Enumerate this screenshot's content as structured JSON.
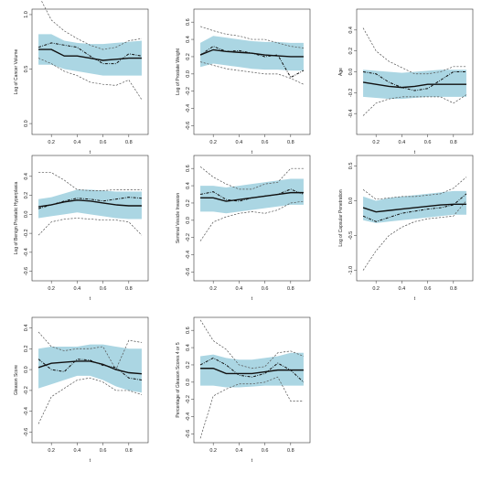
{
  "colors": {
    "band": "#abd6e3",
    "fit": "#111111",
    "bounds": "#555555",
    "estimate": "#111111"
  },
  "chart_data": [
    {
      "type": "line",
      "ylabel": "Log of Cancer Volume",
      "xlabel": "t",
      "xlim": [
        0.05,
        0.95
      ],
      "ylim": [
        -0.1,
        1.05
      ],
      "xticks": [
        0.2,
        0.4,
        0.6,
        0.8
      ],
      "yticks": [
        0.0,
        0.5,
        1.0
      ],
      "ytick_labels": [
        "0.0",
        "0.5",
        "1.0"
      ],
      "x": [
        0.1,
        0.2,
        0.3,
        0.4,
        0.5,
        0.6,
        0.7,
        0.8,
        0.9
      ],
      "fit": [
        0.68,
        0.68,
        0.62,
        0.62,
        0.6,
        0.58,
        0.59,
        0.6,
        0.6
      ],
      "band_lower": [
        0.54,
        0.54,
        0.5,
        0.48,
        0.46,
        0.44,
        0.44,
        0.44,
        0.44
      ],
      "band_upper": [
        0.82,
        0.82,
        0.76,
        0.74,
        0.73,
        0.73,
        0.74,
        0.75,
        0.76
      ],
      "estimate": [
        0.7,
        0.74,
        0.72,
        0.7,
        0.62,
        0.55,
        0.55,
        0.64,
        0.62
      ],
      "bound_lower": [
        0.6,
        0.55,
        0.48,
        0.44,
        0.38,
        0.36,
        0.35,
        0.4,
        0.22
      ],
      "bound_upper": [
        1.18,
        0.95,
        0.85,
        0.78,
        0.72,
        0.68,
        0.7,
        0.76,
        0.78
      ]
    },
    {
      "type": "line",
      "ylabel": "Log of Prostate Weight",
      "xlabel": "t",
      "xlim": [
        0.05,
        0.95
      ],
      "ylim": [
        -0.7,
        0.75
      ],
      "xticks": [
        0.2,
        0.4,
        0.6,
        0.8
      ],
      "yticks": [
        -0.6,
        -0.4,
        -0.2,
        0.0,
        0.2,
        0.4,
        0.6
      ],
      "ytick_labels": [
        "-0.6",
        "-0.4",
        "-0.2",
        "0.0",
        "0.2",
        "0.4",
        "0.6"
      ],
      "x": [
        0.1,
        0.2,
        0.3,
        0.4,
        0.5,
        0.6,
        0.7,
        0.8,
        0.9
      ],
      "fit": [
        0.22,
        0.28,
        0.26,
        0.25,
        0.24,
        0.22,
        0.21,
        0.2,
        0.2
      ],
      "band_lower": [
        0.08,
        0.12,
        0.1,
        0.08,
        0.06,
        0.05,
        0.05,
        0.04,
        0.04
      ],
      "band_upper": [
        0.36,
        0.44,
        0.42,
        0.4,
        0.38,
        0.37,
        0.37,
        0.36,
        0.36
      ],
      "estimate": [
        0.22,
        0.32,
        0.26,
        0.27,
        0.24,
        0.2,
        0.22,
        -0.04,
        0.04
      ],
      "bound_lower": [
        0.14,
        0.1,
        0.06,
        0.04,
        0.02,
        0.0,
        0.0,
        -0.05,
        -0.12
      ],
      "bound_upper": [
        0.55,
        0.5,
        0.46,
        0.44,
        0.4,
        0.4,
        0.36,
        0.32,
        0.3
      ]
    },
    {
      "type": "line",
      "ylabel": "Age",
      "xlabel": "t",
      "xlim": [
        0.05,
        0.95
      ],
      "ylim": [
        -0.6,
        0.6
      ],
      "xticks": [
        0.2,
        0.4,
        0.6,
        0.8
      ],
      "yticks": [
        -0.4,
        -0.2,
        0.0,
        0.2,
        0.4
      ],
      "ytick_labels": [
        "-0.4",
        "-0.2",
        "0.0",
        "0.2",
        "0.4"
      ],
      "x": [
        0.1,
        0.2,
        0.3,
        0.4,
        0.5,
        0.6,
        0.7,
        0.8,
        0.9
      ],
      "fit": [
        -0.1,
        -0.12,
        -0.14,
        -0.15,
        -0.14,
        -0.12,
        -0.12,
        -0.12,
        -0.12
      ],
      "band_lower": [
        -0.24,
        -0.25,
        -0.26,
        -0.26,
        -0.25,
        -0.24,
        -0.24,
        -0.24,
        -0.24
      ],
      "band_upper": [
        0.02,
        0.01,
        0.0,
        -0.01,
        0.0,
        0.01,
        0.02,
        0.02,
        0.02
      ],
      "estimate": [
        0.0,
        -0.02,
        -0.1,
        -0.15,
        -0.18,
        -0.16,
        -0.08,
        0.0,
        0.0
      ],
      "bound_lower": [
        -0.42,
        -0.3,
        -0.26,
        -0.24,
        -0.24,
        -0.24,
        -0.24,
        -0.3,
        -0.22
      ],
      "bound_upper": [
        0.42,
        0.2,
        0.1,
        0.04,
        -0.02,
        -0.02,
        0.0,
        0.05,
        0.05
      ]
    },
    {
      "type": "line",
      "ylabel": "Log of Benign Prostatic Hyperplasia",
      "xlabel": "t",
      "xlim": [
        0.05,
        0.95
      ],
      "ylim": [
        -0.7,
        0.62
      ],
      "xticks": [
        0.2,
        0.4,
        0.6,
        0.8
      ],
      "yticks": [
        -0.6,
        -0.4,
        -0.2,
        0.0,
        0.2,
        0.4
      ],
      "ytick_labels": [
        "-0.6",
        "-0.4",
        "-0.2",
        "0.0",
        "0.2",
        "0.4"
      ],
      "x": [
        0.1,
        0.2,
        0.3,
        0.4,
        0.5,
        0.6,
        0.7,
        0.8,
        0.9
      ],
      "fit": [
        0.08,
        0.1,
        0.13,
        0.15,
        0.14,
        0.12,
        0.1,
        0.09,
        0.09
      ],
      "band_lower": [
        -0.04,
        -0.02,
        0.0,
        0.02,
        0.0,
        -0.02,
        -0.04,
        -0.05,
        -0.05
      ],
      "band_upper": [
        0.16,
        0.18,
        0.22,
        0.26,
        0.26,
        0.25,
        0.24,
        0.24,
        0.24
      ],
      "estimate": [
        0.06,
        0.1,
        0.14,
        0.17,
        0.16,
        0.14,
        0.16,
        0.18,
        0.17
      ],
      "bound_lower": [
        -0.22,
        -0.08,
        -0.05,
        -0.04,
        -0.05,
        -0.06,
        -0.06,
        -0.08,
        -0.22
      ],
      "bound_upper": [
        0.44,
        0.44,
        0.36,
        0.26,
        0.25,
        0.25,
        0.26,
        0.26,
        0.26
      ]
    },
    {
      "type": "line",
      "ylabel": "Seminal Vesicle Invasion",
      "xlabel": "t",
      "xlim": [
        0.05,
        0.95
      ],
      "ylim": [
        -0.7,
        0.75
      ],
      "xticks": [
        0.2,
        0.4,
        0.6,
        0.8
      ],
      "yticks": [
        -0.6,
        -0.4,
        -0.2,
        0.0,
        0.2,
        0.4,
        0.6
      ],
      "ytick_labels": [
        "-0.6",
        "-0.4",
        "-0.2",
        "0.0",
        "0.2",
        "0.4",
        "0.6"
      ],
      "x": [
        0.1,
        0.2,
        0.3,
        0.4,
        0.5,
        0.6,
        0.7,
        0.8,
        0.9
      ],
      "fit": [
        0.26,
        0.26,
        0.22,
        0.24,
        0.26,
        0.28,
        0.3,
        0.32,
        0.32
      ],
      "band_lower": [
        0.1,
        0.1,
        0.08,
        0.1,
        0.12,
        0.14,
        0.16,
        0.18,
        0.18
      ],
      "band_upper": [
        0.4,
        0.4,
        0.38,
        0.4,
        0.42,
        0.44,
        0.46,
        0.48,
        0.48
      ],
      "estimate": [
        0.3,
        0.33,
        0.24,
        0.22,
        0.26,
        0.28,
        0.3,
        0.36,
        0.3
      ],
      "bound_lower": [
        -0.24,
        -0.02,
        0.04,
        0.08,
        0.1,
        0.08,
        0.12,
        0.2,
        0.22
      ],
      "bound_upper": [
        0.62,
        0.5,
        0.42,
        0.36,
        0.36,
        0.42,
        0.44,
        0.6,
        0.6
      ]
    },
    {
      "type": "line",
      "ylabel": "Log of Capsular Penetration",
      "xlabel": "t",
      "xlim": [
        0.05,
        0.95
      ],
      "ylim": [
        -1.15,
        0.65
      ],
      "xticks": [
        0.2,
        0.4,
        0.6,
        0.8
      ],
      "yticks": [
        -1.0,
        -0.5,
        0.0,
        0.5
      ],
      "ytick_labels": [
        "-1.0",
        "-0.5",
        "0.0",
        "0.5"
      ],
      "x": [
        0.1,
        0.2,
        0.3,
        0.4,
        0.5,
        0.6,
        0.7,
        0.8,
        0.9
      ],
      "fit": [
        -0.1,
        -0.16,
        -0.14,
        -0.12,
        -0.1,
        -0.08,
        -0.06,
        -0.05,
        -0.05
      ],
      "band_lower": [
        -0.28,
        -0.32,
        -0.3,
        -0.28,
        -0.26,
        -0.24,
        -0.22,
        -0.2,
        -0.2
      ],
      "band_upper": [
        0.06,
        0.0,
        0.04,
        0.06,
        0.08,
        0.1,
        0.12,
        0.14,
        0.14
      ],
      "estimate": [
        -0.22,
        -0.3,
        -0.24,
        -0.18,
        -0.15,
        -0.12,
        -0.1,
        -0.06,
        0.1
      ],
      "bound_lower": [
        -1.0,
        -0.72,
        -0.5,
        -0.38,
        -0.3,
        -0.26,
        -0.24,
        -0.22,
        0.0
      ],
      "bound_upper": [
        0.16,
        0.02,
        0.04,
        0.06,
        0.06,
        0.08,
        0.1,
        0.18,
        0.34
      ]
    },
    {
      "type": "line",
      "ylabel": "Gleason Score",
      "xlabel": "t",
      "xlim": [
        0.05,
        0.95
      ],
      "ylim": [
        -0.7,
        0.5
      ],
      "xticks": [
        0.2,
        0.4,
        0.6,
        0.8
      ],
      "yticks": [
        -0.6,
        -0.4,
        -0.2,
        0.0,
        0.2,
        0.4
      ],
      "ytick_labels": [
        "-0.6",
        "-0.4",
        "-0.2",
        "0.0",
        "0.2",
        "0.4"
      ],
      "x": [
        0.1,
        0.2,
        0.3,
        0.4,
        0.5,
        0.6,
        0.7,
        0.8,
        0.9
      ],
      "fit": [
        0.02,
        0.06,
        0.07,
        0.08,
        0.08,
        0.05,
        0.0,
        -0.03,
        -0.04
      ],
      "band_lower": [
        -0.18,
        -0.14,
        -0.1,
        -0.06,
        -0.06,
        -0.1,
        -0.16,
        -0.2,
        -0.22
      ],
      "band_upper": [
        0.2,
        0.22,
        0.22,
        0.22,
        0.24,
        0.24,
        0.22,
        0.2,
        0.2
      ],
      "estimate": [
        0.1,
        0.0,
        -0.02,
        0.1,
        0.09,
        0.04,
        0.02,
        -0.08,
        -0.1
      ],
      "bound_lower": [
        -0.52,
        -0.26,
        -0.18,
        -0.1,
        -0.08,
        -0.12,
        -0.2,
        -0.2,
        -0.24
      ],
      "bound_upper": [
        0.36,
        0.22,
        0.18,
        0.2,
        0.2,
        0.22,
        0.0,
        0.28,
        0.26
      ]
    },
    {
      "type": "line",
      "ylabel": "Percentage of Gleason Scores 4 or 5",
      "xlabel": "t",
      "xlim": [
        0.05,
        0.95
      ],
      "ylim": [
        -0.7,
        0.75
      ],
      "xticks": [
        0.2,
        0.4,
        0.6,
        0.8
      ],
      "yticks": [
        -0.6,
        -0.4,
        -0.2,
        0.0,
        0.2,
        0.4,
        0.6
      ],
      "ytick_labels": [
        "-0.6",
        "-0.4",
        "-0.2",
        "0.0",
        "0.2",
        "0.4",
        "0.6"
      ],
      "x": [
        0.1,
        0.2,
        0.3,
        0.4,
        0.5,
        0.6,
        0.7,
        0.8,
        0.9
      ],
      "fit": [
        0.16,
        0.16,
        0.1,
        0.1,
        0.1,
        0.12,
        0.14,
        0.14,
        0.14
      ],
      "band_lower": [
        -0.04,
        -0.04,
        -0.06,
        -0.06,
        -0.05,
        -0.04,
        -0.04,
        -0.04,
        -0.04
      ],
      "band_upper": [
        0.3,
        0.32,
        0.28,
        0.26,
        0.26,
        0.28,
        0.3,
        0.34,
        0.34
      ],
      "estimate": [
        0.2,
        0.28,
        0.2,
        0.08,
        0.06,
        0.1,
        0.22,
        0.14,
        0.0
      ],
      "bound_lower": [
        -0.65,
        -0.16,
        -0.08,
        -0.02,
        -0.02,
        0.0,
        0.06,
        -0.22,
        -0.22
      ],
      "bound_upper": [
        0.72,
        0.48,
        0.38,
        0.2,
        0.16,
        0.18,
        0.34,
        0.36,
        0.3
      ]
    }
  ]
}
